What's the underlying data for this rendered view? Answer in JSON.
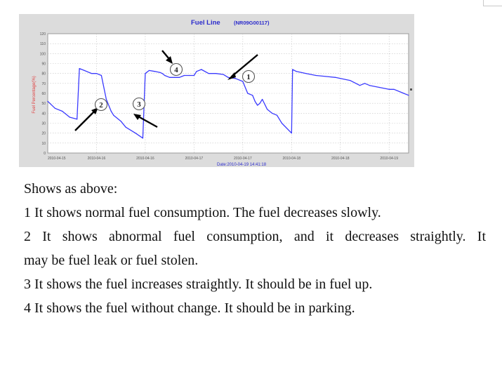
{
  "document": {
    "paragraphs": {
      "intro": "Shows as above:",
      "item1": "1 It shows normal fuel consumption. The fuel decreases slowly.",
      "item2_line1": "2 It shows abnormal fuel consumption, and it decreases straightly. It",
      "item2_line2": "may be fuel leak or fuel stolen.",
      "item3": "3 It shows the fuel increases straightly. It should be in fuel up.",
      "item4": "4 It shows the fuel without change. It should be in parking."
    }
  },
  "chart_data": {
    "type": "line",
    "title": "Fuel Line",
    "subtitle": "(NR09G00117)",
    "ylabel": "Fuel Percentage(%)",
    "xlabel": "Date:2010-04-19 14:41:18",
    "ylim": [
      0,
      120
    ],
    "yticks": [
      0,
      10,
      20,
      30,
      40,
      50,
      60,
      70,
      80,
      90,
      100,
      110,
      120
    ],
    "xticks": [
      "2010-04-15",
      "2010-04-16",
      "2010-04-16",
      "2010-04-17",
      "2010-04-17",
      "2010-04-18",
      "2010-04-18",
      "2010-04-19"
    ],
    "grid": true,
    "line_color": "#3a3aff",
    "x": [
      0.0,
      0.15,
      0.3,
      0.45,
      0.6,
      0.65,
      0.75,
      0.9,
      1.0,
      1.1,
      1.2,
      1.3,
      1.35,
      1.5,
      1.6,
      1.8,
      1.95,
      2.0,
      2.08,
      2.2,
      2.3,
      2.35,
      2.4,
      2.5,
      2.6,
      2.65,
      2.7,
      2.75,
      2.8,
      2.9,
      3.0,
      3.05,
      3.15,
      3.3,
      3.45,
      3.6,
      3.7,
      3.85,
      4.0,
      4.1,
      4.2,
      4.25,
      4.3,
      4.35,
      4.4,
      4.5,
      4.6,
      4.7,
      4.8,
      5.0,
      5.02,
      5.1,
      5.3,
      5.5,
      5.7,
      5.9,
      6.0,
      6.2,
      6.4,
      6.5,
      6.6,
      6.8,
      7.0,
      7.1,
      7.3,
      7.4
    ],
    "y": [
      52,
      45,
      42,
      36,
      34,
      85,
      83,
      80,
      80,
      78,
      54,
      42,
      38,
      32,
      26,
      20,
      15,
      80,
      83,
      82,
      81,
      80,
      78,
      76,
      76,
      76,
      76,
      77,
      78,
      78,
      78,
      82,
      84,
      80,
      80,
      79,
      76,
      75,
      72,
      60,
      58,
      52,
      48,
      50,
      54,
      44,
      40,
      38,
      30,
      20,
      84,
      82,
      80,
      78,
      77,
      76,
      75,
      73,
      68,
      70,
      68,
      66,
      64,
      64,
      60,
      58
    ],
    "annotations": [
      {
        "label": "1",
        "meaning": "normal consumption"
      },
      {
        "label": "2",
        "meaning": "abnormal consumption"
      },
      {
        "label": "3",
        "meaning": "fuel up"
      },
      {
        "label": "4",
        "meaning": "parking"
      }
    ]
  }
}
